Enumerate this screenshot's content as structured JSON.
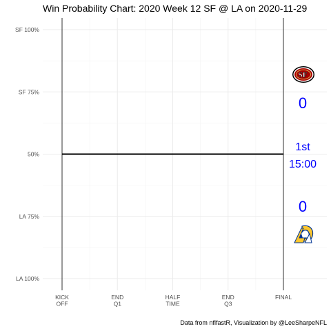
{
  "chart_data": {
    "type": "line",
    "title": "Win Probability Chart: 2020 Week 12 SF @ LA on 2020-11-29",
    "xlabel": "",
    "ylabel": "",
    "x_tick_labels": [
      [
        "KICK",
        "OFF"
      ],
      [
        "END",
        "Q1"
      ],
      [
        "HALF",
        "TIME"
      ],
      [
        "END",
        "Q3"
      ],
      [
        "FINAL"
      ]
    ],
    "x_tick_values": [
      0,
      15,
      30,
      45,
      60
    ],
    "xlim": [
      0,
      60
    ],
    "y_tick_labels": [
      "SF 100%",
      "SF 75%",
      "50%",
      "LA 75%",
      "LA 100%"
    ],
    "y_tick_values": [
      1.0,
      0.75,
      0.5,
      0.25,
      0.0
    ],
    "ylim": [
      0,
      1
    ],
    "grid": true,
    "vertical_markers": [
      0,
      60
    ],
    "series": [
      {
        "x": [
          0,
          60
        ],
        "y": [
          0.5,
          0.5
        ],
        "color": "#000000"
      }
    ],
    "annotations": {
      "away_team_logo": "sf-49ers-logo",
      "home_team_logo": "la-rams-logo",
      "away_score": "0",
      "home_score": "0",
      "quarter": "1st",
      "clock": "15:00",
      "text_color": "#0000ff"
    },
    "caption": "Data from nflfastR, Visualization by @LeeSharpeNFL"
  }
}
